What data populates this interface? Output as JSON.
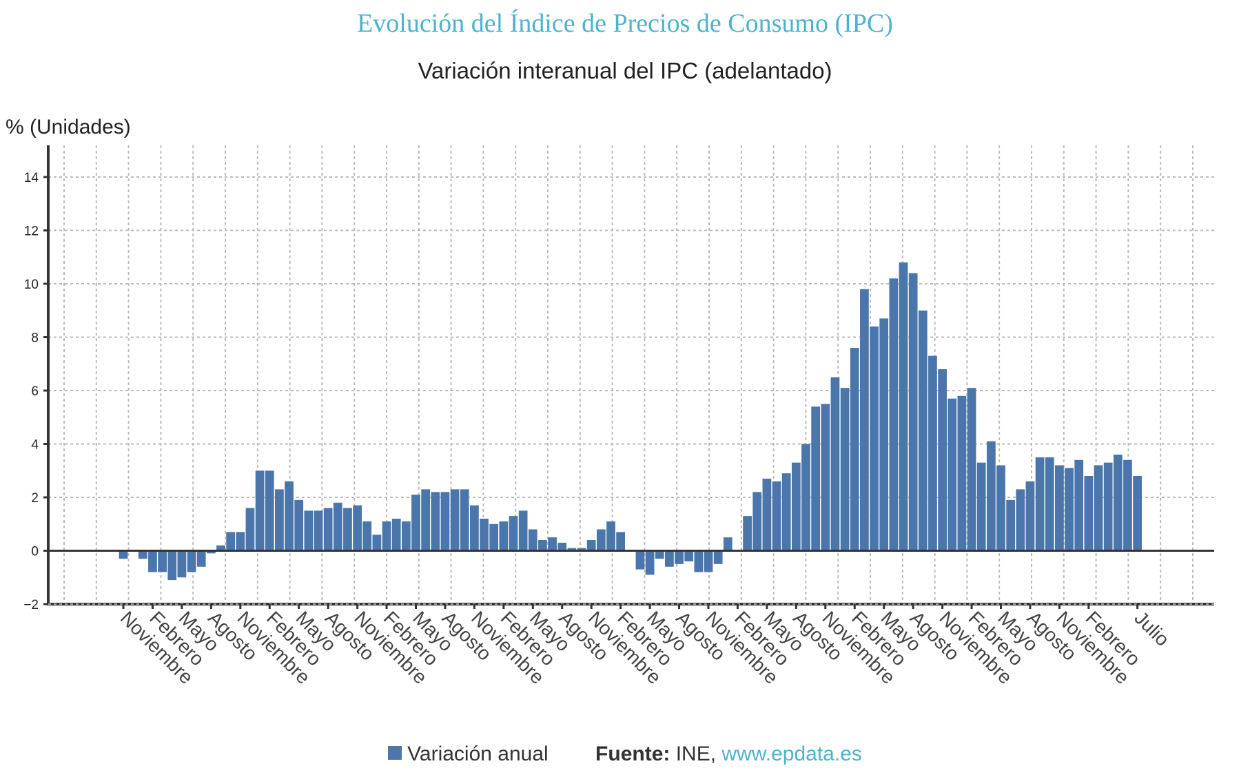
{
  "title": "Evolución del Índice de Precios de Consumo (IPC)",
  "subtitle": "Variación interanual del IPC (adelantado)",
  "legend": {
    "series_label": "Variación anual",
    "source_label": "Fuente:",
    "source_name": "INE,",
    "source_link": "www.epdata.es"
  },
  "colors": {
    "bar": "#4a76ab",
    "title": "#4bb3cd"
  },
  "chart_data": {
    "type": "bar",
    "ylabel": "% (Unidades)",
    "ylim": [
      -2,
      15
    ],
    "yticks": [
      -2,
      0,
      2,
      4,
      6,
      8,
      10,
      12,
      14
    ],
    "grid": true,
    "legend_position": "bottom",
    "xtick_labels": [
      "Noviembre",
      "Febrero",
      "Mayo",
      "Agosto",
      "Noviembre",
      "Febrero",
      "Mayo",
      "Agosto",
      "Noviembre",
      "Febrero",
      "Mayo",
      "Agosto",
      "Noviembre",
      "Febrero",
      "Mayo",
      "Agosto",
      "Noviembre",
      "Febrero",
      "Mayo",
      "Agosto",
      "Noviembre",
      "Febrero",
      "Mayo",
      "Agosto",
      "Noviembre",
      "Febrero",
      "Mayo",
      "Agosto",
      "Noviembre",
      "Febrero",
      "Mayo",
      "Agosto",
      "Noviembre",
      "Febrero",
      "Julio"
    ],
    "series": [
      {
        "name": "Variación anual",
        "values": [
          -0.3,
          0.0,
          -0.3,
          -0.8,
          -0.8,
          -1.1,
          -1.0,
          -0.8,
          -0.6,
          -0.1,
          0.2,
          0.7,
          0.7,
          1.6,
          3.0,
          3.0,
          2.3,
          2.6,
          1.9,
          1.5,
          1.5,
          1.6,
          1.8,
          1.6,
          1.7,
          1.1,
          0.6,
          1.1,
          1.2,
          1.1,
          2.1,
          2.3,
          2.2,
          2.2,
          2.3,
          2.3,
          1.7,
          1.2,
          1.0,
          1.1,
          1.3,
          1.5,
          0.8,
          0.4,
          0.5,
          0.3,
          0.1,
          0.1,
          0.4,
          0.8,
          1.1,
          0.7,
          0.0,
          -0.7,
          -0.9,
          -0.3,
          -0.6,
          -0.5,
          -0.4,
          -0.8,
          -0.8,
          -0.5,
          0.5,
          0.0,
          1.3,
          2.2,
          2.7,
          2.6,
          2.9,
          3.3,
          4.0,
          5.4,
          5.5,
          6.5,
          6.1,
          7.6,
          9.8,
          8.4,
          8.7,
          10.2,
          10.8,
          10.4,
          9.0,
          7.3,
          6.8,
          5.7,
          5.8,
          6.1,
          3.3,
          4.1,
          3.2,
          1.9,
          2.3,
          2.6,
          3.5,
          3.5,
          3.2,
          3.1,
          3.4,
          2.8,
          3.2,
          3.3,
          3.6,
          3.4,
          2.8
        ]
      }
    ]
  }
}
